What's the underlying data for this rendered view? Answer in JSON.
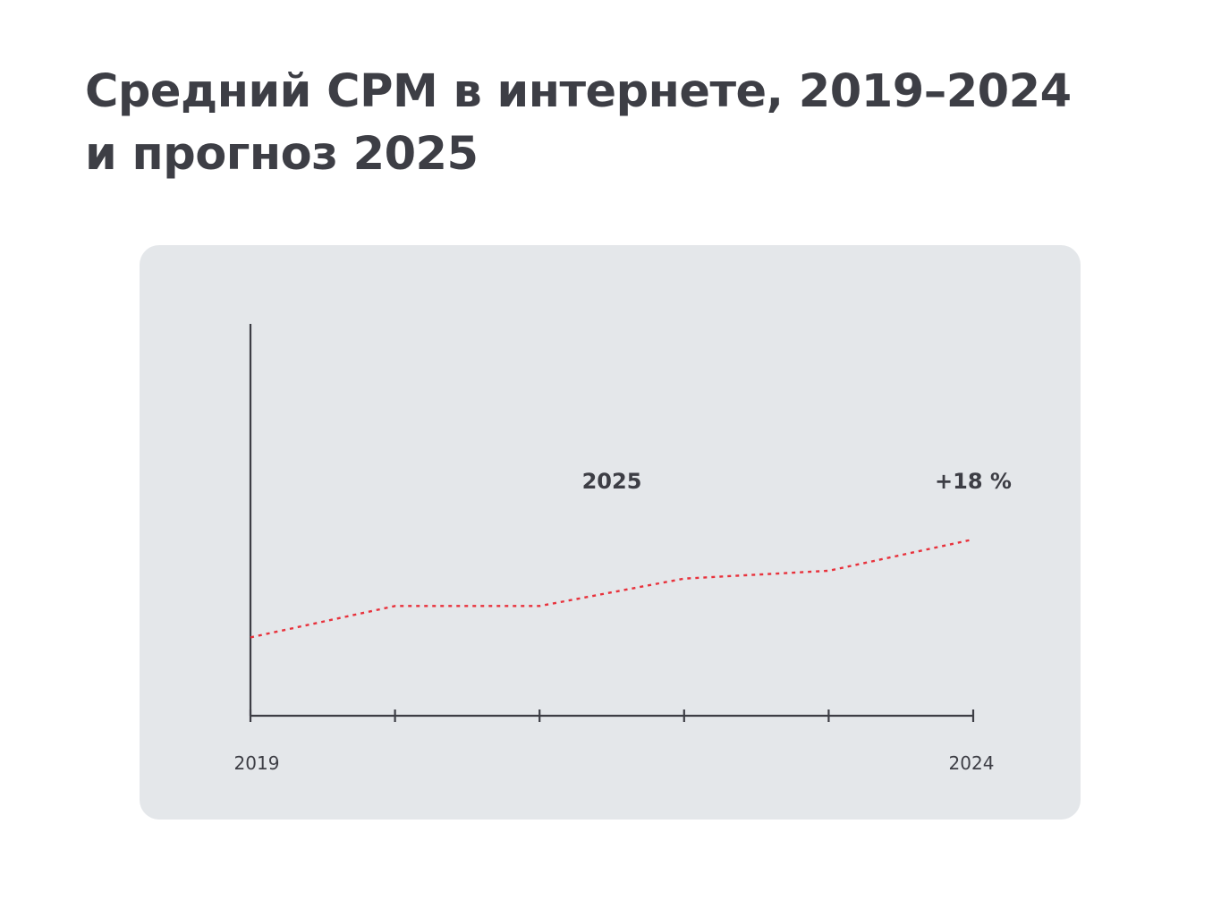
{
  "title": {
    "line1": "Средний CPM в интернете, 2019–2024",
    "line2": "и прогноз 2025"
  },
  "chart_data": {
    "type": "line",
    "title": "Средний CPM в интернете, 2019–2024 и прогноз 2025",
    "x": [
      2019,
      2020,
      2021,
      2022,
      2023,
      2024
    ],
    "x_tick_labels": [
      "2019",
      "",
      "",
      "",
      "",
      "2024"
    ],
    "series": [
      {
        "values": [
          100,
          108,
          108,
          115,
          117,
          125
        ],
        "color": "#e8323c",
        "style": "dotted"
      }
    ],
    "ylim": [
      80,
      180
    ],
    "grid": false,
    "annotations": [
      {
        "text": "2025",
        "x": 2021.5,
        "y": 138
      },
      {
        "text": "+18 %",
        "x": 2024,
        "y": 138
      }
    ],
    "axis_color": "#3d3e45"
  }
}
